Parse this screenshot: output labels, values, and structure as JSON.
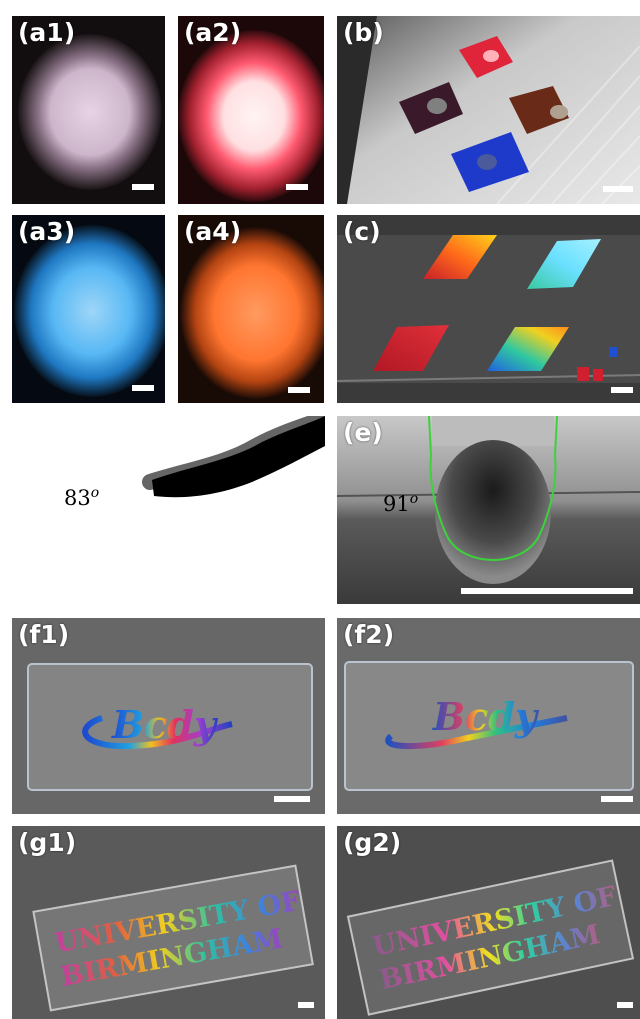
{
  "panels": {
    "a1": {
      "label": "(a1)"
    },
    "a2": {
      "label": "(a2)"
    },
    "a3": {
      "label": "(a3)"
    },
    "a4": {
      "label": "(a4)"
    },
    "b": {
      "label": "(b)"
    },
    "c": {
      "label": "(c)"
    },
    "d": {
      "angle": "83",
      "angle_unit": "o"
    },
    "e": {
      "label": "(e)",
      "angle": "91",
      "angle_unit": "o"
    },
    "f1": {
      "label": "(f1)"
    },
    "f2": {
      "label": "(f2)"
    },
    "g1": {
      "label": "(g1)"
    },
    "g2": {
      "label": "(g2)"
    }
  },
  "colors": {
    "a1_glow": "#d9c2d6",
    "a2_glow": "#ff4a63",
    "a3_glow": "#3aa6f0",
    "a4_glow": "#ff7a30",
    "contact_outline": "#3cd23c"
  }
}
